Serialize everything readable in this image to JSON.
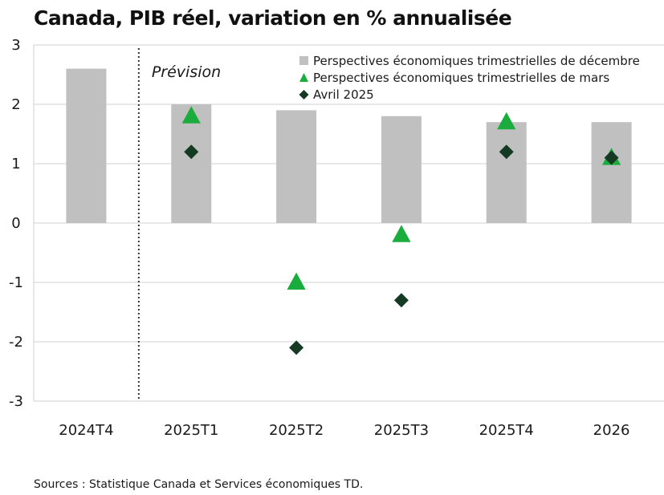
{
  "title": "Canada, PIB réel, variation en % annualisée",
  "source": "Sources : Statistique Canada et Services économiques TD.",
  "forecast_label": "Prévision",
  "colors": {
    "bar": "#c0c0c0",
    "triangle": "#1aac3c",
    "diamond": "#153a24",
    "grid": "#d9d9d9",
    "divider": "#333333"
  },
  "chart_data": {
    "type": "bar",
    "categories": [
      "2024T4",
      "2025T1",
      "2025T2",
      "2025T3",
      "2025T4",
      "2026"
    ],
    "ylim": [
      -3,
      3
    ],
    "yticks": [
      "-3",
      "-2",
      "-1",
      "0",
      "1",
      "2",
      "3"
    ],
    "grid": true,
    "legend_position": "top-right",
    "forecast_divider_after": "2024T4",
    "series": [
      {
        "name": "Perspectives économiques trimestrielles de décembre",
        "kind": "bar",
        "marker": "square",
        "values": [
          2.6,
          2.0,
          1.9,
          1.8,
          1.7,
          1.7
        ]
      },
      {
        "name": "Perspectives économiques trimestrielles de mars",
        "kind": "scatter",
        "marker": "triangle",
        "values": [
          null,
          1.8,
          -1.0,
          -0.2,
          1.7,
          1.1
        ]
      },
      {
        "name": "Avril 2025",
        "kind": "scatter",
        "marker": "diamond",
        "values": [
          null,
          1.2,
          -2.1,
          -1.3,
          1.2,
          1.1
        ]
      }
    ]
  }
}
